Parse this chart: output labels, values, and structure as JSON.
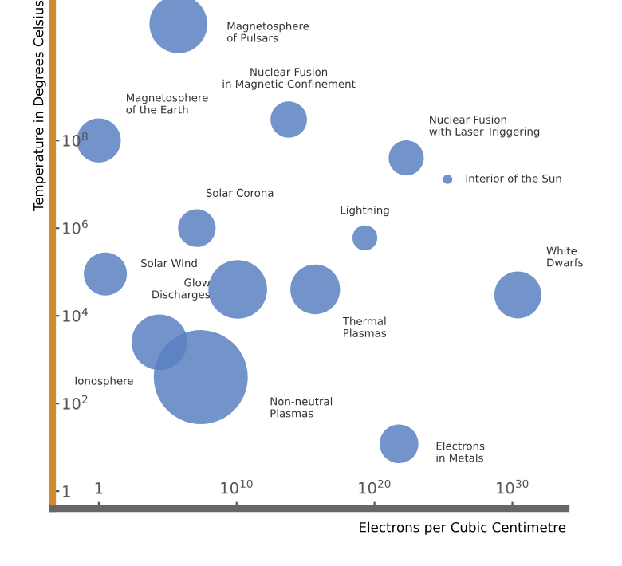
{
  "chart_data": {
    "type": "bubble",
    "xlabel": "Electrons per Cubic Centimetre",
    "ylabel": "Temperature in Degrees Celsius",
    "log": "xy",
    "xlim": [
      0.00045,
      8e+33
    ],
    "ylim": [
      0.4,
      160000000000.0
    ],
    "xticks": [
      1,
      {
        "value": 10000000000.0,
        "label": "10$^{10}$"
      },
      {
        "value": 1e+20,
        "label": "10$^{20}$"
      },
      {
        "value": 1e+30,
        "label": "10$^{30}$"
      }
    ],
    "yticks": [
      1,
      {
        "value": 100,
        "label": "10$^{2}$"
      },
      {
        "value": 10000.0,
        "label": "10$^{4}$"
      },
      {
        "value": 1000000.0,
        "label": "10$^{6}$"
      },
      {
        "value": 100000000.0,
        "label": "10$^{8}$"
      }
    ],
    "grid": false,
    "legend": false,
    "series": [
      {
        "name": "Magnetosphere\nof Pulsars",
        "color": "#5b80c2",
        "x": [
          600000.0
        ],
        "values": [
          45000000000.0
        ],
        "sizes": [
          0.38
        ]
      },
      {
        "name": "Magnetosphere\nof the Earth",
        "color": "#5b80c2",
        "x": [
          1
        ],
        "values": [
          100000000.0
        ],
        "sizes": [
          0.22
        ]
      },
      {
        "name": "Nuclear Fusion\nin Magnetic Confinement",
        "color": "#5b80c2",
        "x": [
          60000000000000.0
        ],
        "values": [
          300000000.0
        ],
        "sizes": [
          0.15
        ]
      },
      {
        "name": "Nuclear Fusion\nwith Laser Triggering",
        "color": "#5b80c2",
        "x": [
          2e+22
        ],
        "values": [
          40000000.0
        ],
        "sizes": [
          0.14
        ]
      },
      {
        "name": "Interior of the Sun",
        "color": "#5b80c2",
        "x": [
          2e+25
        ],
        "values": [
          13000000.0
        ],
        "sizes": [
          0.01
        ]
      },
      {
        "name": "Solar Corona",
        "color": "#5b80c2",
        "x": [
          13000000.0
        ],
        "values": [
          1000000.0
        ],
        "sizes": [
          0.16
        ]
      },
      {
        "name": "Lightning",
        "color": "#5b80c2",
        "x": [
          2e+19
        ],
        "values": [
          600000.0
        ],
        "sizes": [
          0.07
        ]
      },
      {
        "name": "Solar Wind",
        "color": "#5b80c2",
        "x": [
          3
        ],
        "values": [
          90000.0
        ],
        "sizes": [
          0.21
        ]
      },
      {
        "name": "Glow\nDischarges",
        "color": "#5b80c2",
        "x": [
          12000000000.0
        ],
        "values": [
          40000.0
        ],
        "sizes": [
          0.39
        ]
      },
      {
        "name": "Thermal\nPlasmas",
        "color": "#5b80c2",
        "x": [
          5000000000000000.0
        ],
        "values": [
          40000.0
        ],
        "sizes": [
          0.28
        ]
      },
      {
        "name": "White\nDwarfs",
        "color": "#5b80c2",
        "x": [
          2.5e+30
        ],
        "values": [
          30000.0
        ],
        "sizes": [
          0.25
        ]
      },
      {
        "name": "Ionosphere",
        "color": "#5b80c2",
        "x": [
          25000.0
        ],
        "values": [
          2500.0
        ],
        "sizes": [
          0.35
        ]
      },
      {
        "name": "Non-neutral\nPlasmas",
        "color": "#5b80c2",
        "x": [
          25000000.0
        ],
        "values": [
          400.0
        ],
        "sizes": [
          1
        ]
      },
      {
        "name": "Electrons\nin Metals",
        "color": "#5b80c2",
        "x": [
          6e+21
        ],
        "values": [
          12
        ],
        "sizes": [
          0.17
        ]
      }
    ]
  }
}
